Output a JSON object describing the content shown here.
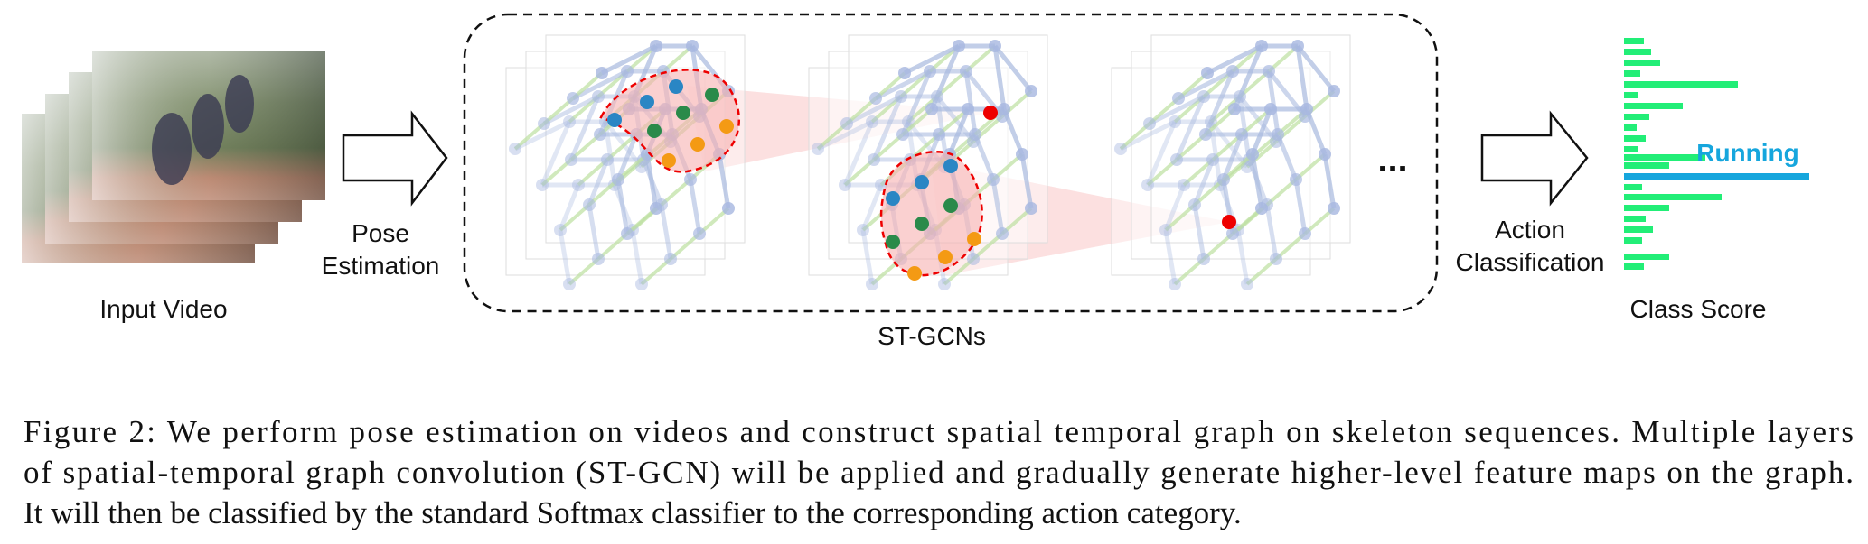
{
  "figure": {
    "labels": {
      "input": "Input Video",
      "pose": [
        "Pose",
        "Estimation"
      ],
      "stgcn": "ST-GCNs",
      "ellipsis": "...",
      "action": [
        "Action",
        "Classification"
      ],
      "score": "Class Score",
      "predicted": "Running"
    },
    "caption": [
      "Figure 2:  We perform pose estimation on videos and construct spatial temporal graph on skeleton sequences. Multiple layers",
      "of spatial-temporal graph convolution (ST-GCN) will be applied and gradually generate higher-level feature maps on the graph.",
      "It will then be classified by the standard Softmax classifier to the corresponding action category."
    ]
  }
}
